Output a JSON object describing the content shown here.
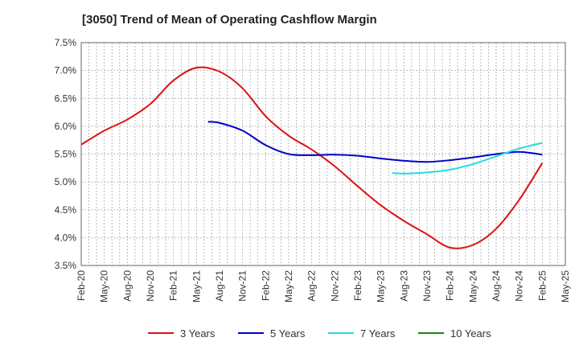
{
  "chart_data": {
    "type": "line",
    "title": "[3050]  Trend of Mean of Operating Cashflow Margin",
    "xlabel": "",
    "ylabel": "",
    "ylim": [
      3.5,
      7.5
    ],
    "y_ticks": [
      "3.5%",
      "4.0%",
      "4.5%",
      "5.0%",
      "5.5%",
      "6.0%",
      "6.5%",
      "7.0%",
      "7.5%"
    ],
    "y_tick_values": [
      3.5,
      4.0,
      4.5,
      5.0,
      5.5,
      6.0,
      6.5,
      7.0,
      7.5
    ],
    "x_ticks": [
      "Feb-20",
      "May-20",
      "Aug-20",
      "Nov-20",
      "Feb-21",
      "May-21",
      "Aug-21",
      "Nov-21",
      "Feb-22",
      "May-22",
      "Aug-22",
      "Nov-22",
      "Feb-23",
      "May-23",
      "Aug-23",
      "Nov-23",
      "Feb-24",
      "May-24",
      "Aug-24",
      "Nov-24",
      "Feb-25",
      "May-25"
    ],
    "grid": true,
    "legend_position": "bottom",
    "series": [
      {
        "name": "3 Years",
        "color": "#dd1111",
        "x": [
          0,
          1,
          2,
          3,
          4,
          5,
          6,
          7,
          8,
          9,
          10,
          11,
          12,
          13,
          14,
          15,
          16,
          17,
          18,
          19,
          20
        ],
        "values": [
          5.67,
          5.92,
          6.12,
          6.4,
          6.82,
          7.05,
          6.98,
          6.68,
          6.18,
          5.83,
          5.58,
          5.28,
          4.92,
          4.58,
          4.3,
          4.06,
          3.82,
          3.87,
          4.16,
          4.68,
          5.34
        ]
      },
      {
        "name": "5 Years",
        "color": "#0000cc",
        "x": [
          5.5,
          6,
          7,
          8,
          9,
          10,
          11,
          12,
          13,
          14,
          15,
          16,
          17,
          18,
          19,
          20
        ],
        "values": [
          6.08,
          6.06,
          5.92,
          5.66,
          5.5,
          5.48,
          5.49,
          5.47,
          5.42,
          5.38,
          5.36,
          5.39,
          5.44,
          5.5,
          5.54,
          5.49
        ]
      },
      {
        "name": "7 Years",
        "color": "#22dddd",
        "x": [
          13.5,
          14,
          15,
          16,
          17,
          18,
          19,
          20
        ],
        "values": [
          5.16,
          5.15,
          5.17,
          5.22,
          5.32,
          5.46,
          5.6,
          5.7
        ]
      },
      {
        "name": "10 Years",
        "color": "#118811",
        "x": [],
        "values": []
      }
    ]
  }
}
